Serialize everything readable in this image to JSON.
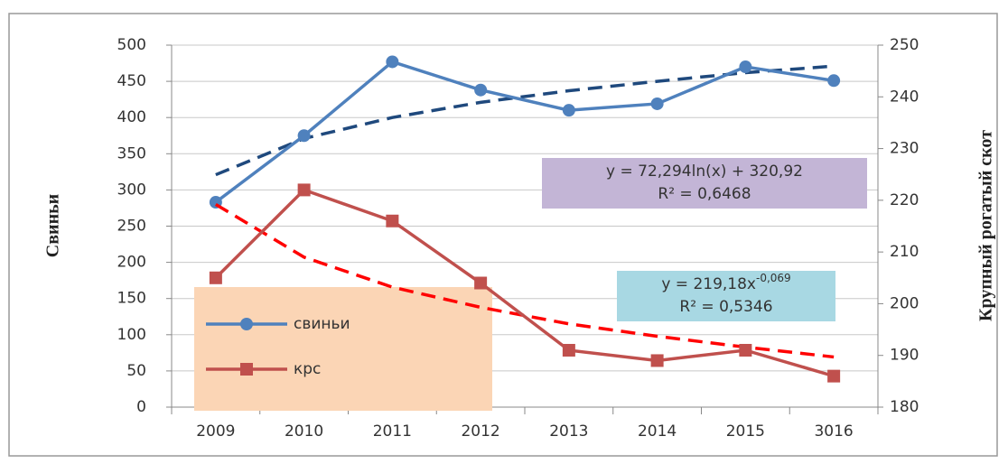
{
  "chart_data": {
    "type": "line",
    "categories": [
      "2009",
      "2010",
      "2011",
      "2012",
      "2013",
      "2014",
      "2015",
      "3016"
    ],
    "y_label": "Свиньи",
    "y2_label": "Крупный рогатый скот",
    "ylim": [
      0,
      500
    ],
    "yticks": [
      0,
      50,
      100,
      150,
      200,
      250,
      300,
      350,
      400,
      450,
      500
    ],
    "y2lim": [
      180,
      250
    ],
    "y2ticks": [
      180,
      190,
      200,
      210,
      220,
      230,
      240,
      250
    ],
    "grid": true,
    "series": [
      {
        "name": "свиньи",
        "color": "#4f81bd",
        "marker": "circle",
        "axis": "y",
        "values": [
          283,
          375,
          477,
          438,
          410,
          419,
          470,
          451
        ],
        "trend": {
          "color": "#1f497d",
          "values": [
            321,
            371,
            400,
            421,
            437,
            450,
            462,
            471
          ]
        }
      },
      {
        "name": "крс",
        "color": "#c0504d",
        "marker": "square",
        "axis": "y2",
        "values": [
          205,
          222,
          216,
          204,
          191,
          189,
          191,
          186
        ],
        "trend": {
          "color": "#ff0000",
          "values": [
            219.2,
            209.0,
            203.2,
            199.3,
            196.1,
            193.7,
            191.6,
            189.7
          ]
        }
      }
    ],
    "annotations": [
      {
        "text": "y = 72,294ln(x) + 320,92",
        "r2": "R² = 0,6468",
        "color": "#c3b5d6"
      },
      {
        "text": "y = 219,18x",
        "sup": "-0,069",
        "r2": "R² = 0,5346",
        "color": "#a8d8e3"
      }
    ],
    "legend_color": "#fbd5b5"
  }
}
